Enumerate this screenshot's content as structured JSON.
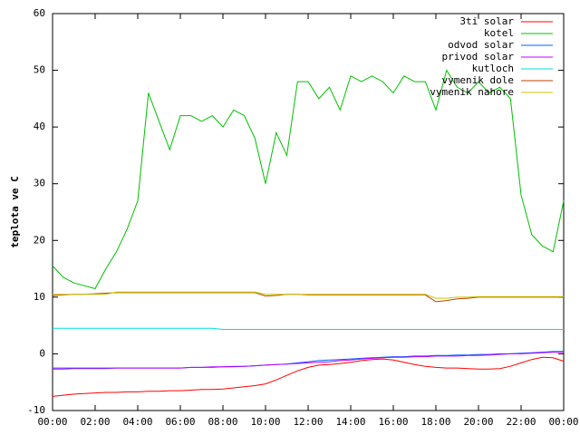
{
  "chart_data": {
    "type": "line",
    "ylabel": "teplota ve C",
    "x": [
      0,
      0.5,
      1,
      1.5,
      2,
      2.5,
      3,
      3.5,
      4,
      4.5,
      5,
      5.5,
      6,
      6.5,
      7,
      7.5,
      8,
      8.5,
      9,
      9.5,
      10,
      10.5,
      11,
      11.5,
      12,
      12.5,
      13,
      13.5,
      14,
      14.5,
      15,
      15.5,
      16,
      16.5,
      17,
      17.5,
      18,
      18.5,
      19,
      19.5,
      20,
      20.5,
      21,
      21.5,
      22,
      22.5,
      23,
      23.5,
      24
    ],
    "xlim": [
      0,
      24
    ],
    "xticks": [
      {
        "value": 0,
        "label": "00:00"
      },
      {
        "value": 2,
        "label": "02:00"
      },
      {
        "value": 4,
        "label": "04:00"
      },
      {
        "value": 6,
        "label": "06:00"
      },
      {
        "value": 8,
        "label": "08:00"
      },
      {
        "value": 10,
        "label": "10:00"
      },
      {
        "value": 12,
        "label": "12:00"
      },
      {
        "value": 14,
        "label": "14:00"
      },
      {
        "value": 16,
        "label": "16:00"
      },
      {
        "value": 18,
        "label": "18:00"
      },
      {
        "value": 20,
        "label": "20:00"
      },
      {
        "value": 22,
        "label": "22:00"
      },
      {
        "value": 24,
        "label": "00:00"
      }
    ],
    "ylim": [
      -10,
      60
    ],
    "yticks": [
      -10,
      0,
      10,
      20,
      30,
      40,
      50,
      60
    ],
    "legend": "top-right",
    "series": [
      {
        "name": "3ti solar",
        "color": "#ff0000",
        "values": [
          -7.5,
          -7.3,
          -7.1,
          -7,
          -6.9,
          -6.8,
          -6.8,
          -6.7,
          -6.7,
          -6.6,
          -6.6,
          -6.5,
          -6.5,
          -6.4,
          -6.3,
          -6.3,
          -6.2,
          -6,
          -5.8,
          -5.6,
          -5.3,
          -4.6,
          -3.8,
          -3,
          -2.4,
          -2,
          -1.9,
          -1.7,
          -1.5,
          -1.2,
          -1,
          -0.9,
          -1.1,
          -1.5,
          -1.9,
          -2.2,
          -2.4,
          -2.5,
          -2.5,
          -2.6,
          -2.7,
          -2.7,
          -2.6,
          -2.2,
          -1.6,
          -1,
          -0.6,
          -0.7,
          -1.3
        ]
      },
      {
        "name": "kotel",
        "color": "#00c000",
        "values": [
          15.5,
          13.5,
          12.5,
          12,
          11.5,
          15,
          18,
          22,
          27,
          46,
          41,
          36,
          42,
          42,
          41,
          42,
          40,
          43,
          42,
          38,
          30,
          39,
          35,
          48,
          48,
          45,
          47,
          43,
          49,
          48,
          49,
          48,
          46,
          49,
          48,
          48,
          43,
          50,
          47,
          46,
          48,
          46,
          47,
          45,
          28,
          21,
          19,
          18,
          27
        ]
      },
      {
        "name": "odvod solar",
        "color": "#0060ff",
        "values": [
          -2.7,
          -2.7,
          -2.6,
          -2.6,
          -2.6,
          -2.6,
          -2.5,
          -2.5,
          -2.5,
          -2.5,
          -2.5,
          -2.5,
          -2.5,
          -2.4,
          -2.4,
          -2.4,
          -2.3,
          -2.3,
          -2.2,
          -2.1,
          -2,
          -1.9,
          -1.8,
          -1.6,
          -1.4,
          -1.2,
          -1.1,
          -1,
          -0.9,
          -0.8,
          -0.7,
          -0.6,
          -0.5,
          -0.5,
          -0.4,
          -0.4,
          -0.3,
          -0.3,
          -0.2,
          -0.2,
          -0.1,
          -0.1,
          0,
          0,
          0.1,
          0.2,
          0.3,
          0.4,
          0.4
        ]
      },
      {
        "name": "privod solar",
        "color": "#c000ff",
        "values": [
          -2.5,
          -2.5,
          -2.5,
          -2.5,
          -2.5,
          -2.5,
          -2.5,
          -2.5,
          -2.5,
          -2.5,
          -2.5,
          -2.5,
          -2.5,
          -2.4,
          -2.4,
          -2.3,
          -2.3,
          -2.2,
          -2.2,
          -2.1,
          -2,
          -1.9,
          -1.8,
          -1.7,
          -1.6,
          -1.5,
          -1.4,
          -1.2,
          -1.1,
          -0.9,
          -0.8,
          -0.7,
          -0.6,
          -0.6,
          -0.5,
          -0.5,
          -0.4,
          -0.4,
          -0.4,
          -0.3,
          -0.3,
          -0.2,
          -0.1,
          0,
          0,
          0.1,
          0.2,
          0.3,
          0.3
        ]
      },
      {
        "name": "kutloch",
        "color": "#00dddd",
        "values": [
          4.5,
          4.5,
          4.5,
          4.5,
          4.5,
          4.5,
          4.5,
          4.5,
          4.5,
          4.5,
          4.5,
          4.5,
          4.5,
          4.5,
          4.5,
          4.5,
          4.3,
          4.3,
          4.3,
          4.3,
          4.3,
          4.3,
          4.3,
          4.3,
          4.3,
          4.3,
          4.3,
          4.3,
          4.3,
          4.3,
          4.3,
          4.3,
          4.3,
          4.3,
          4.3,
          4.3,
          4.3,
          4.3,
          4.3,
          4.3,
          4.3,
          4.3,
          4.3,
          4.3,
          4.3,
          4.3,
          4.3,
          4.3,
          4.3
        ]
      },
      {
        "name": "vymenik dole",
        "color": "#c04000",
        "values": [
          10.3,
          10.4,
          10.5,
          10.5,
          10.6,
          10.7,
          10.8,
          10.8,
          10.8,
          10.8,
          10.8,
          10.8,
          10.8,
          10.8,
          10.8,
          10.8,
          10.8,
          10.8,
          10.8,
          10.8,
          10.2,
          10.3,
          10.5,
          10.5,
          10.4,
          10.4,
          10.4,
          10.4,
          10.4,
          10.4,
          10.4,
          10.4,
          10.4,
          10.4,
          10.4,
          10.4,
          9.2,
          9.4,
          9.7,
          9.8,
          10,
          10,
          10,
          10,
          10,
          10,
          10,
          10,
          10
        ]
      },
      {
        "name": "vymenik nahore",
        "color": "#c8c800",
        "values": [
          10.5,
          10.5,
          10.5,
          10.5,
          10.5,
          10.5,
          10.9,
          10.9,
          10.9,
          10.9,
          10.9,
          10.9,
          10.9,
          10.9,
          10.9,
          10.9,
          10.9,
          10.9,
          10.9,
          10.9,
          10.5,
          10.5,
          10.5,
          10.5,
          10.5,
          10.5,
          10.5,
          10.5,
          10.5,
          10.5,
          10.5,
          10.5,
          10.5,
          10.5,
          10.5,
          10.5,
          9.8,
          9.8,
          10,
          10,
          10.1,
          10.1,
          10.1,
          10.1,
          10.1,
          10.1,
          10.1,
          10.1,
          10.1
        ]
      }
    ]
  }
}
